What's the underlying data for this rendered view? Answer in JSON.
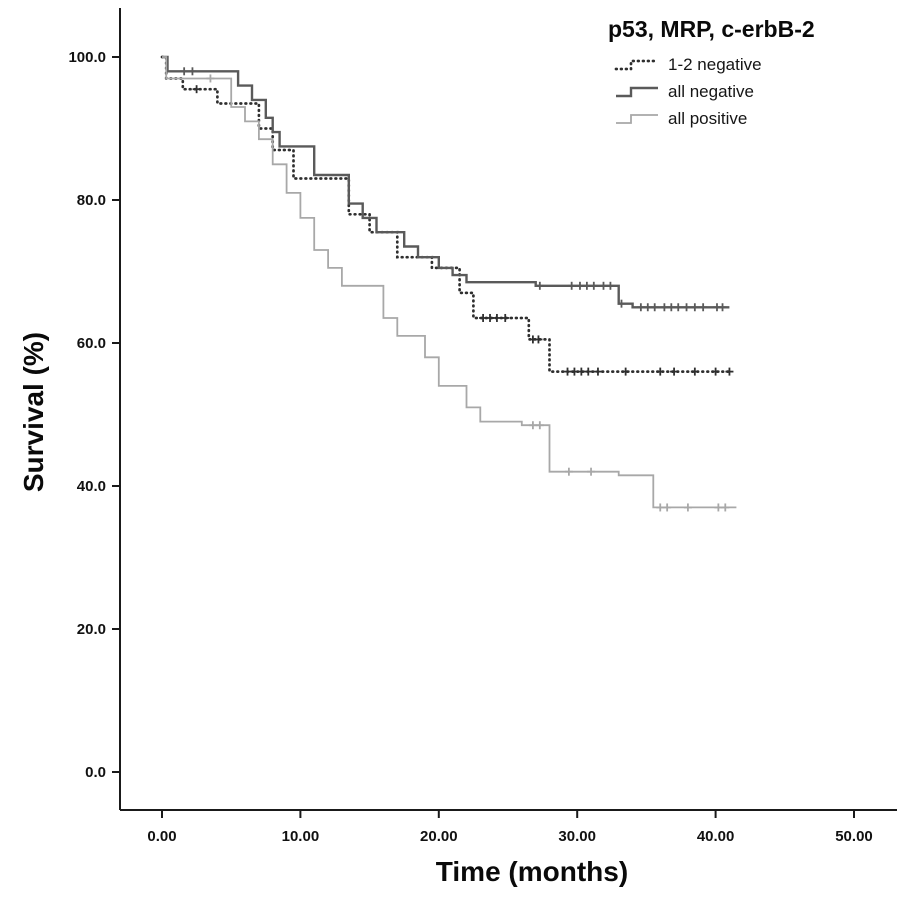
{
  "title": "p53, MRP, c-erbB-2",
  "axes": {
    "x": {
      "label": "Time (months)",
      "min": 0,
      "max": 50,
      "ticks": [
        0,
        10,
        20,
        30,
        40,
        50
      ],
      "tick_labels": [
        "0.00",
        "10.00",
        "20.00",
        "30.00",
        "40.00",
        "50.00"
      ]
    },
    "y": {
      "label": "Survival (%)",
      "min": 0,
      "max": 100,
      "ticks": [
        0,
        20,
        40,
        60,
        80,
        100
      ],
      "tick_labels": [
        "0.0",
        "20.0",
        "40.0",
        "60.0",
        "80.0",
        "100.0"
      ]
    }
  },
  "chart_data": {
    "type": "line",
    "subtype": "kaplan_meier_step",
    "title": "p53, MRP, c-erbB-2",
    "xlabel": "Time (months)",
    "ylabel": "Survival (%)",
    "xlim": [
      0,
      50
    ],
    "ylim": [
      0,
      100
    ],
    "grid": false,
    "legend_position": "top-right",
    "series": [
      {
        "name": "1-2 negative",
        "style": "dotted",
        "color": "#2f2f2f",
        "points": [
          [
            0,
            100
          ],
          [
            0.3,
            97
          ],
          [
            1.5,
            95.5
          ],
          [
            4,
            93.5
          ],
          [
            7,
            90
          ],
          [
            8,
            87
          ],
          [
            9.5,
            83
          ],
          [
            13.5,
            78
          ],
          [
            15,
            75.5
          ],
          [
            17,
            72
          ],
          [
            19.5,
            70.5
          ],
          [
            21.5,
            67
          ],
          [
            22.5,
            63.5
          ],
          [
            26.5,
            60.5
          ],
          [
            28,
            56
          ],
          [
            41,
            56
          ]
        ],
        "censors": [
          [
            2.5,
            95.5
          ],
          [
            23.2,
            63.5
          ],
          [
            23.7,
            63.5
          ],
          [
            24.2,
            63.5
          ],
          [
            24.8,
            63.5
          ],
          [
            26.8,
            60.5
          ],
          [
            27.2,
            60.5
          ],
          [
            29.3,
            56
          ],
          [
            29.8,
            56
          ],
          [
            30.3,
            56
          ],
          [
            30.8,
            56
          ],
          [
            31.5,
            56
          ],
          [
            33.5,
            56
          ],
          [
            36,
            56
          ],
          [
            37,
            56
          ],
          [
            38.5,
            56
          ],
          [
            40,
            56
          ],
          [
            41,
            56
          ]
        ]
      },
      {
        "name": "all negative",
        "style": "solid",
        "color": "#5a5a5a",
        "points": [
          [
            0,
            100
          ],
          [
            0.4,
            98
          ],
          [
            5.5,
            96
          ],
          [
            6.5,
            94
          ],
          [
            7.5,
            91.5
          ],
          [
            8,
            89.5
          ],
          [
            8.5,
            87.5
          ],
          [
            11,
            83.5
          ],
          [
            13.5,
            79.5
          ],
          [
            14.5,
            77.5
          ],
          [
            15.5,
            75.5
          ],
          [
            17.5,
            73.5
          ],
          [
            18.5,
            72
          ],
          [
            20,
            70.5
          ],
          [
            21,
            69.5
          ],
          [
            22,
            68.5
          ],
          [
            27,
            68
          ],
          [
            33,
            65.5
          ],
          [
            34,
            65
          ],
          [
            41,
            65
          ]
        ],
        "censors": [
          [
            1.6,
            98
          ],
          [
            2.2,
            98
          ],
          [
            27.3,
            68
          ],
          [
            29.6,
            68
          ],
          [
            30.2,
            68
          ],
          [
            30.7,
            68
          ],
          [
            31.2,
            68
          ],
          [
            31.9,
            68
          ],
          [
            32.4,
            68
          ],
          [
            33.2,
            65.5
          ],
          [
            34.6,
            65
          ],
          [
            35.1,
            65
          ],
          [
            35.6,
            65
          ],
          [
            36.3,
            65
          ],
          [
            36.8,
            65
          ],
          [
            37.3,
            65
          ],
          [
            37.9,
            65
          ],
          [
            38.5,
            65
          ],
          [
            39.1,
            65
          ],
          [
            40.1,
            65
          ],
          [
            40.5,
            65
          ]
        ]
      },
      {
        "name": "all positive",
        "style": "solid_light",
        "color": "#a8a8a8",
        "points": [
          [
            0,
            100
          ],
          [
            0.3,
            97
          ],
          [
            5,
            93
          ],
          [
            6,
            91
          ],
          [
            7,
            88.5
          ],
          [
            8,
            85
          ],
          [
            9,
            81
          ],
          [
            10,
            77.5
          ],
          [
            11,
            73
          ],
          [
            12,
            70.5
          ],
          [
            13,
            68
          ],
          [
            16,
            63.5
          ],
          [
            17,
            61
          ],
          [
            19,
            58
          ],
          [
            20,
            54
          ],
          [
            22,
            51
          ],
          [
            23,
            49
          ],
          [
            26,
            48.5
          ],
          [
            28,
            42
          ],
          [
            33,
            41.5
          ],
          [
            35.5,
            37
          ],
          [
            41.5,
            37
          ]
        ],
        "censors": [
          [
            3.5,
            97
          ],
          [
            26.8,
            48.5
          ],
          [
            27.3,
            48.5
          ],
          [
            29.4,
            42
          ],
          [
            31,
            42
          ],
          [
            36,
            37
          ],
          [
            36.5,
            37
          ],
          [
            38,
            37
          ],
          [
            40.2,
            37
          ],
          [
            40.7,
            37
          ]
        ]
      }
    ]
  }
}
